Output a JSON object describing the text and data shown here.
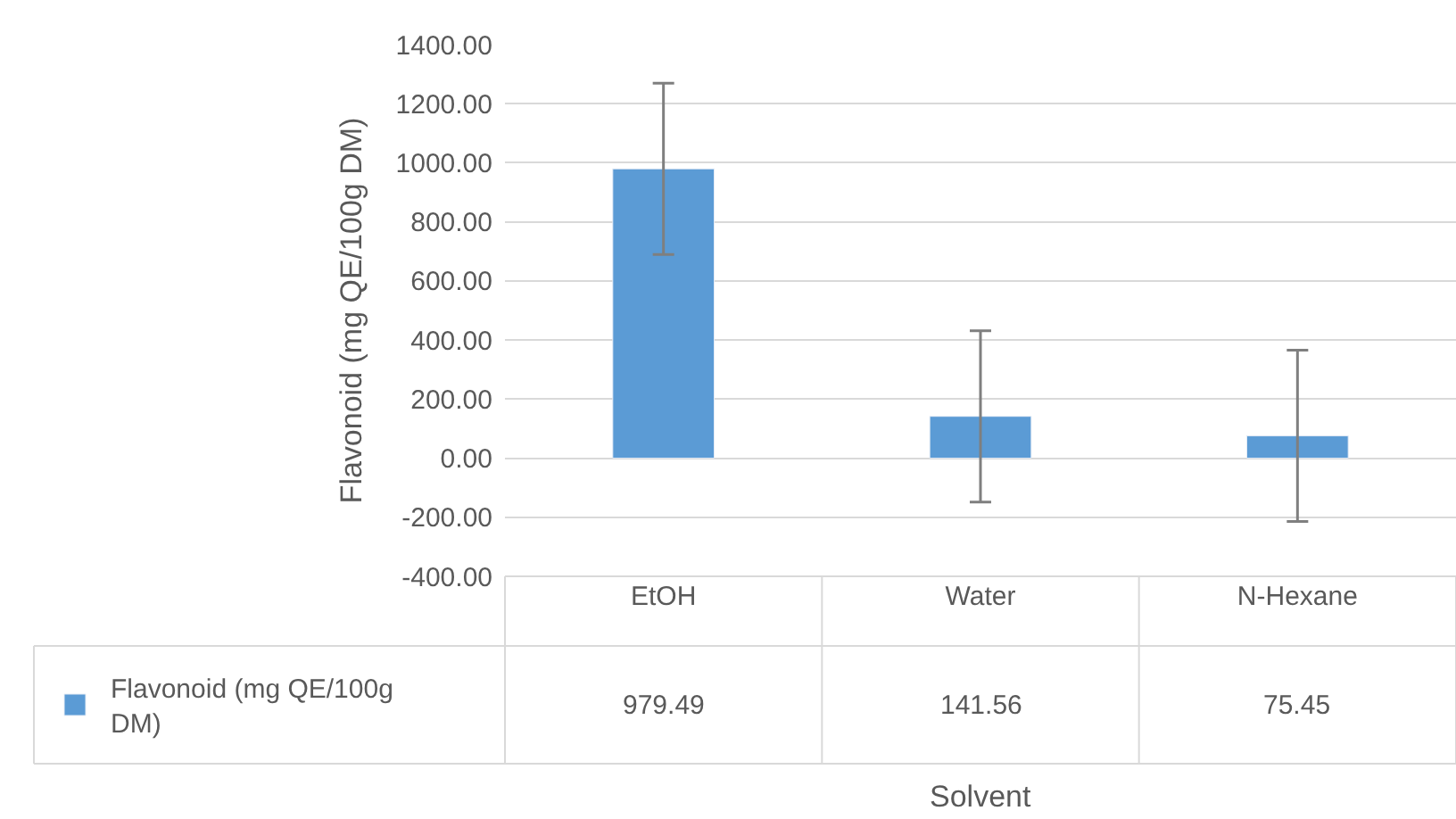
{
  "chart_data": {
    "type": "bar",
    "annotations": [
      "Solvent"
    ],
    "ylabel": "Flavonoid (mg QE/100g DM)",
    "categories": [
      "EtOH",
      "Water",
      "N-Hexane"
    ],
    "series": [
      {
        "name": "Flavonoid (mg QE/100g DM)",
        "color": "#5b9bd5",
        "values": [
          979.49,
          141.56,
          75.45
        ],
        "errors": [
          290,
          290,
          290
        ]
      }
    ],
    "ylim": [
      -400,
      1400
    ],
    "yticks": [
      {
        "value": -400,
        "label": "-400.00"
      },
      {
        "value": -200,
        "label": "-200.00"
      },
      {
        "value": 0,
        "label": "0.00"
      },
      {
        "value": 200,
        "label": "200.00"
      },
      {
        "value": 400,
        "label": "400.00"
      },
      {
        "value": 600,
        "label": "600.00"
      },
      {
        "value": 800,
        "label": "800.00"
      },
      {
        "value": 1000,
        "label": "1000.00"
      },
      {
        "value": 1200,
        "label": "1200.00"
      },
      {
        "value": 1400,
        "label": "1400.00"
      }
    ],
    "grid": "y",
    "legend": "bottom",
    "data_labels": true
  }
}
